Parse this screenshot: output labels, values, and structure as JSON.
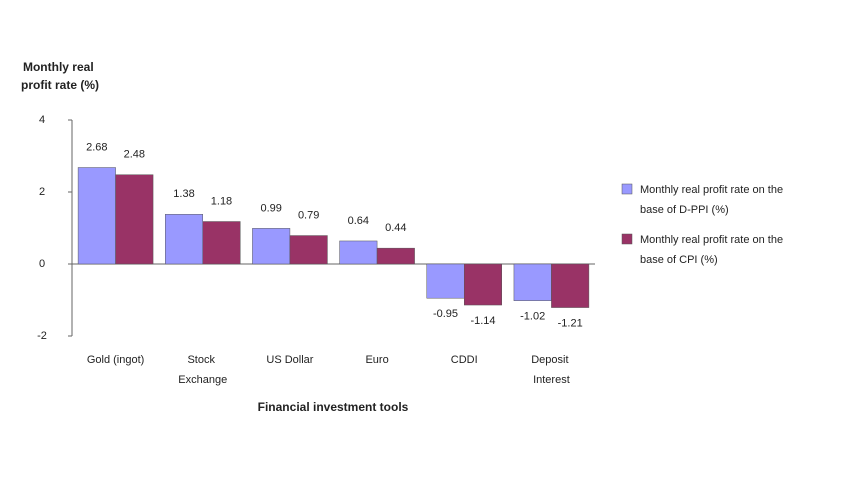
{
  "chart_data": {
    "type": "bar",
    "y_label": "Monthly real profit rate (%)",
    "x_label": "Financial investment tools",
    "categories": [
      "Gold (ingot)",
      "Stock Exchange",
      "US Dollar",
      "Euro",
      "CDDI",
      "Deposit Interest"
    ],
    "series": [
      {
        "name": "Monthly real profit rate on the base of D-PPI (%)",
        "color": "#9999ff",
        "values": [
          2.68,
          1.38,
          0.99,
          0.64,
          -0.95,
          -1.02
        ]
      },
      {
        "name": "Monthly real profit rate on the base of CPI (%)",
        "color": "#993366",
        "values": [
          2.48,
          1.18,
          0.79,
          0.44,
          -1.14,
          -1.21
        ]
      }
    ],
    "ylim": [
      -2,
      4
    ],
    "yticks": [
      -2,
      0,
      2,
      4
    ],
    "grid": false,
    "legend": "right"
  }
}
